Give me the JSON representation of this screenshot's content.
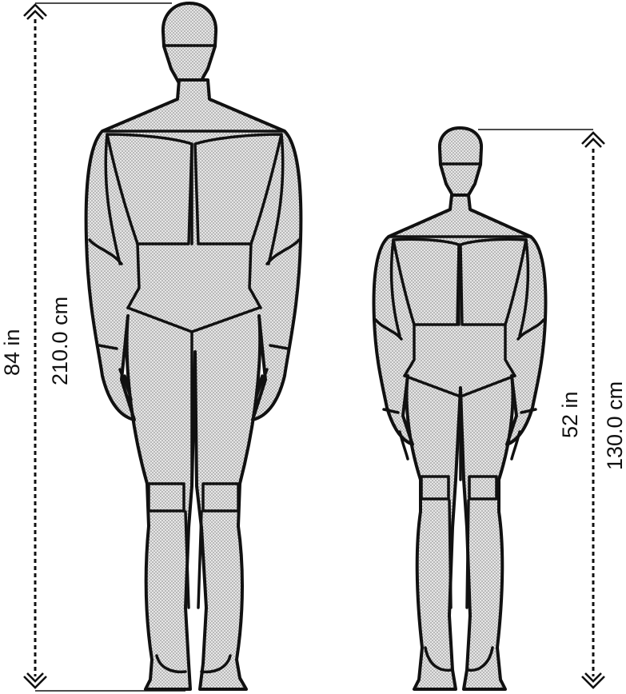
{
  "figures": [
    {
      "id": "tall-figure",
      "height_in": "84 in",
      "height_cm": "210.0 cm"
    },
    {
      "id": "short-figure",
      "height_in": "52 in",
      "height_cm": "130.0 cm"
    }
  ]
}
